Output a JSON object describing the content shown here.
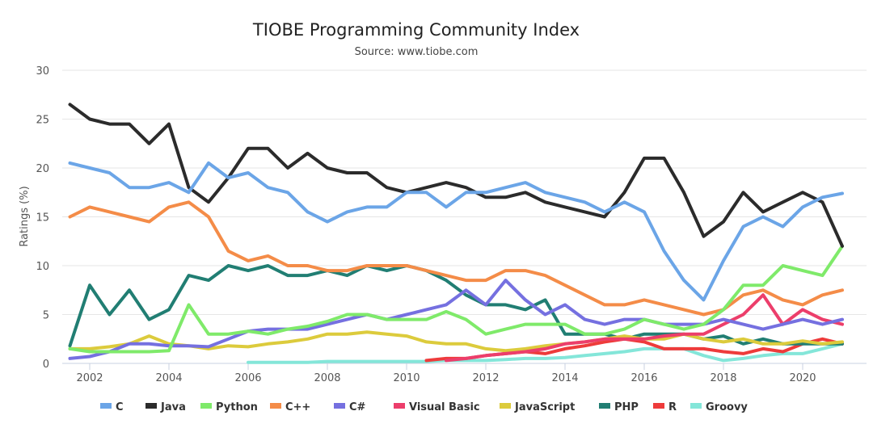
{
  "chart_data": {
    "type": "line",
    "title": "TIOBE Programming Community Index",
    "subtitle": "Source: www.tiobe.com",
    "xlabel": "",
    "ylabel": "Ratings (%)",
    "ylim": [
      0,
      30
    ],
    "xlim": [
      2001.3,
      2021.2
    ],
    "yticks": [
      0,
      5,
      10,
      15,
      20,
      25,
      30
    ],
    "xticks": [
      2002,
      2004,
      2006,
      2008,
      2010,
      2012,
      2014,
      2016,
      2018,
      2020
    ],
    "grid": true,
    "legend_position": "bottom",
    "x": [
      2001.5,
      2002,
      2002.5,
      2003,
      2003.5,
      2004,
      2004.5,
      2005,
      2005.5,
      2006,
      2006.5,
      2007,
      2007.5,
      2008,
      2008.5,
      2009,
      2009.5,
      2010,
      2010.5,
      2011,
      2011.5,
      2012,
      2012.5,
      2013,
      2013.5,
      2014,
      2014.5,
      2015,
      2015.5,
      2016,
      2016.5,
      2017,
      2017.5,
      2018,
      2018.5,
      2019,
      2019.5,
      2020,
      2020.5,
      2021
    ],
    "series": [
      {
        "name": "C",
        "color": "#6ba5e7",
        "values": [
          20.5,
          20,
          19.5,
          18,
          18,
          18.5,
          17.5,
          20.5,
          19,
          19.5,
          18,
          17.5,
          15.5,
          14.5,
          15.5,
          16,
          16,
          17.5,
          17.5,
          16,
          17.5,
          17.5,
          18,
          18.5,
          17.5,
          17,
          16.5,
          15.5,
          16.5,
          15.5,
          11.5,
          8.5,
          6.5,
          10.5,
          14,
          15,
          14,
          16,
          17,
          17.4
        ]
      },
      {
        "name": "Java",
        "color": "#2b2b2b",
        "values": [
          26.5,
          25,
          24.5,
          24.5,
          22.5,
          24.5,
          18,
          16.5,
          19,
          22,
          22,
          20,
          21.5,
          20,
          19.5,
          19.5,
          18,
          17.5,
          18,
          18.5,
          18,
          17,
          17,
          17.5,
          16.5,
          16,
          15.5,
          15,
          17.5,
          21,
          21,
          17.5,
          13,
          14.5,
          17.5,
          15.5,
          16.5,
          17.5,
          16.5,
          12
        ]
      },
      {
        "name": "Python",
        "color": "#7fea6a",
        "values": [
          1.5,
          1.2,
          1.2,
          1.2,
          1.2,
          1.3,
          6,
          3,
          3,
          3.3,
          3,
          3.5,
          3.8,
          4.3,
          5,
          5,
          4.5,
          4.5,
          4.5,
          5.3,
          4.5,
          3,
          3.5,
          4,
          4,
          4,
          3,
          3,
          3.5,
          4.5,
          4,
          3.5,
          4,
          5.5,
          8,
          8,
          10,
          9.5,
          9,
          12
        ]
      },
      {
        "name": "C++",
        "color": "#f48c48",
        "values": [
          15,
          16,
          15.5,
          15,
          14.5,
          16,
          16.5,
          15,
          11.5,
          10.5,
          11,
          10,
          10,
          9.5,
          9.5,
          10,
          10,
          10,
          9.5,
          9,
          8.5,
          8.5,
          9.5,
          9.5,
          9,
          8,
          7,
          6,
          6,
          6.5,
          6,
          5.5,
          5,
          5.5,
          7,
          7.5,
          6.5,
          6,
          7,
          7.5
        ]
      },
      {
        "name": "C#",
        "color": "#7570e0",
        "values": [
          0.5,
          0.7,
          1.2,
          2,
          2,
          1.8,
          1.8,
          1.7,
          2.5,
          3.3,
          3.5,
          3.5,
          3.5,
          4,
          4.5,
          5,
          4.5,
          5,
          5.5,
          6,
          7.5,
          6,
          8.5,
          6.5,
          5,
          6,
          4.5,
          4,
          4.5,
          4.5,
          4,
          4,
          4,
          4.5,
          4,
          3.5,
          4,
          4.5,
          4,
          4.5
        ]
      },
      {
        "name": "Visual Basic",
        "color": "#ec3e6b",
        "values": [
          null,
          null,
          null,
          null,
          null,
          null,
          null,
          null,
          null,
          null,
          null,
          null,
          null,
          null,
          null,
          null,
          null,
          null,
          null,
          0.3,
          0.5,
          0.8,
          1,
          1.2,
          1.5,
          2,
          2.2,
          2.5,
          2.5,
          2.5,
          2.8,
          3,
          3,
          4,
          5,
          7,
          4,
          5.5,
          4.5,
          4
        ]
      },
      {
        "name": "JavaScript",
        "color": "#dccb3c",
        "values": [
          1.5,
          1.5,
          1.7,
          2,
          2.8,
          2,
          1.8,
          1.5,
          1.8,
          1.7,
          2,
          2.2,
          2.5,
          3,
          3,
          3.2,
          3,
          2.8,
          2.2,
          2,
          2,
          1.5,
          1.3,
          1.5,
          1.8,
          2,
          2.2,
          2.5,
          2.8,
          2.5,
          2.5,
          3,
          2.5,
          2.2,
          2.5,
          2,
          2,
          2.3,
          2,
          2.2
        ]
      },
      {
        "name": "PHP",
        "color": "#217e73",
        "values": [
          1.8,
          8,
          5,
          7.5,
          4.5,
          5.5,
          9,
          8.5,
          10,
          9.5,
          10,
          9,
          9,
          9.5,
          9,
          10,
          9.5,
          10,
          9.5,
          8.5,
          7,
          6,
          6,
          5.5,
          6.5,
          3,
          3,
          3,
          2.5,
          3,
          3,
          3,
          2.5,
          2.8,
          2,
          2.5,
          2,
          2,
          2,
          2
        ]
      },
      {
        "name": "R",
        "color": "#ee3b3b",
        "values": [
          null,
          null,
          null,
          null,
          null,
          null,
          null,
          null,
          null,
          null,
          null,
          null,
          null,
          null,
          null,
          null,
          null,
          null,
          0.3,
          0.5,
          0.5,
          0.8,
          1,
          1.2,
          1,
          1.5,
          1.8,
          2.2,
          2.5,
          2.2,
          1.5,
          1.5,
          1.5,
          1.2,
          1,
          1.5,
          1.2,
          2,
          2.5,
          2
        ]
      },
      {
        "name": "Groovy",
        "color": "#84e6d9",
        "values": [
          null,
          null,
          null,
          null,
          null,
          null,
          null,
          null,
          null,
          0.1,
          0.1,
          0.1,
          0.1,
          0.2,
          0.2,
          0.2,
          0.2,
          0.2,
          0.2,
          0.3,
          0.3,
          0.3,
          0.4,
          0.5,
          0.5,
          0.6,
          0.8,
          1,
          1.2,
          1.5,
          1.5,
          1.5,
          0.8,
          0.3,
          0.5,
          0.8,
          1,
          1,
          1.5,
          2
        ]
      }
    ]
  }
}
